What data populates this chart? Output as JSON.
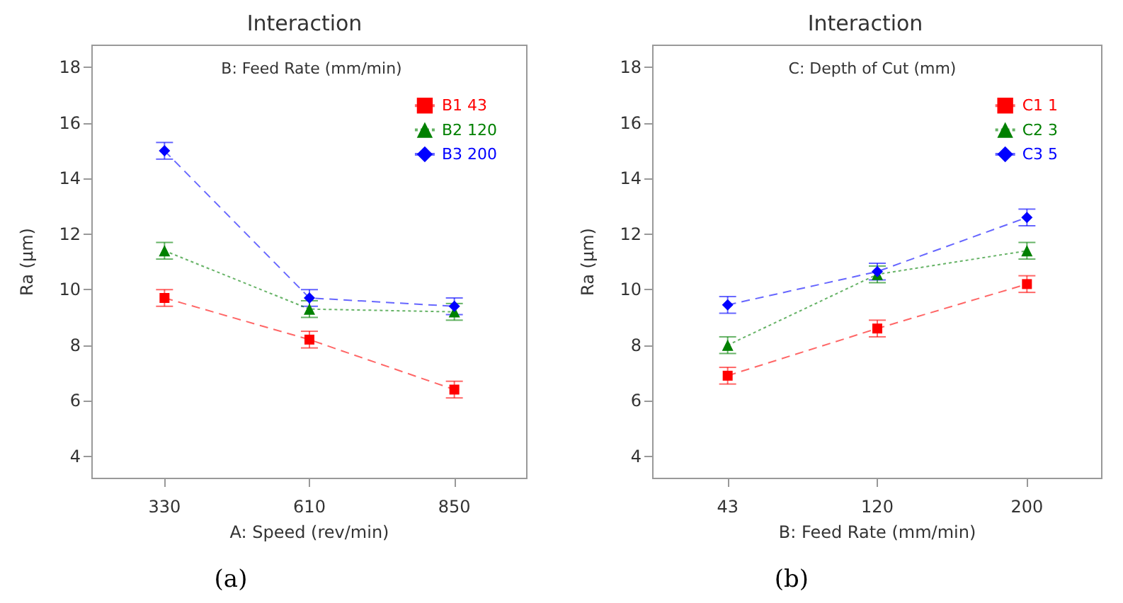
{
  "chart_data": [
    {
      "type": "line",
      "title": "Interaction",
      "legend_title": "B: Feed Rate (mm/min)",
      "xlabel": "A: Speed (rev/min)",
      "ylabel": "Ra (µm)",
      "categories": [
        "330",
        "610",
        "850"
      ],
      "series": [
        {
          "name": "B1 43",
          "color": "#ff0000",
          "marker": "square",
          "line_style": "dashed",
          "values": [
            9.7,
            8.2,
            6.4
          ],
          "errors": [
            0.3,
            0.3,
            0.3
          ]
        },
        {
          "name": "B2 120",
          "color": "#008000",
          "marker": "triangle",
          "line_style": "dotted",
          "values": [
            11.4,
            9.3,
            9.2
          ],
          "errors": [
            0.3,
            0.3,
            0.3
          ]
        },
        {
          "name": "B3 200",
          "color": "#0000ff",
          "marker": "diamond",
          "line_style": "dashed",
          "values": [
            15.0,
            9.7,
            9.4
          ],
          "errors": [
            0.3,
            0.3,
            0.3
          ]
        }
      ],
      "ylim": [
        3.2,
        18.8
      ],
      "yticks": [
        4,
        6,
        8,
        10,
        12,
        14,
        16,
        18
      ],
      "grid": false,
      "legend": "top right",
      "annotations": [
        "(a)"
      ]
    },
    {
      "type": "line",
      "title": "Interaction",
      "legend_title": "C: Depth of Cut (mm)",
      "xlabel": "B: Feed Rate (mm/min)",
      "ylabel": "Ra (µm)",
      "categories": [
        "43",
        "120",
        "200"
      ],
      "series": [
        {
          "name": "C1 1",
          "color": "#ff0000",
          "marker": "square",
          "line_style": "dashed",
          "values": [
            6.9,
            8.6,
            10.2
          ],
          "errors": [
            0.3,
            0.3,
            0.3
          ]
        },
        {
          "name": "C2 3",
          "color": "#008000",
          "marker": "triangle",
          "line_style": "dotted",
          "values": [
            8.0,
            10.55,
            11.4
          ],
          "errors": [
            0.3,
            0.3,
            0.3
          ]
        },
        {
          "name": "C3 5",
          "color": "#0000ff",
          "marker": "diamond",
          "line_style": "dashed",
          "values": [
            9.45,
            10.65,
            12.6
          ],
          "errors": [
            0.3,
            0.3,
            0.3
          ]
        }
      ],
      "ylim": [
        3.2,
        18.8
      ],
      "yticks": [
        4,
        6,
        8,
        10,
        12,
        14,
        16,
        18
      ],
      "grid": false,
      "legend": "top right",
      "annotations": [
        "(b)"
      ]
    }
  ]
}
